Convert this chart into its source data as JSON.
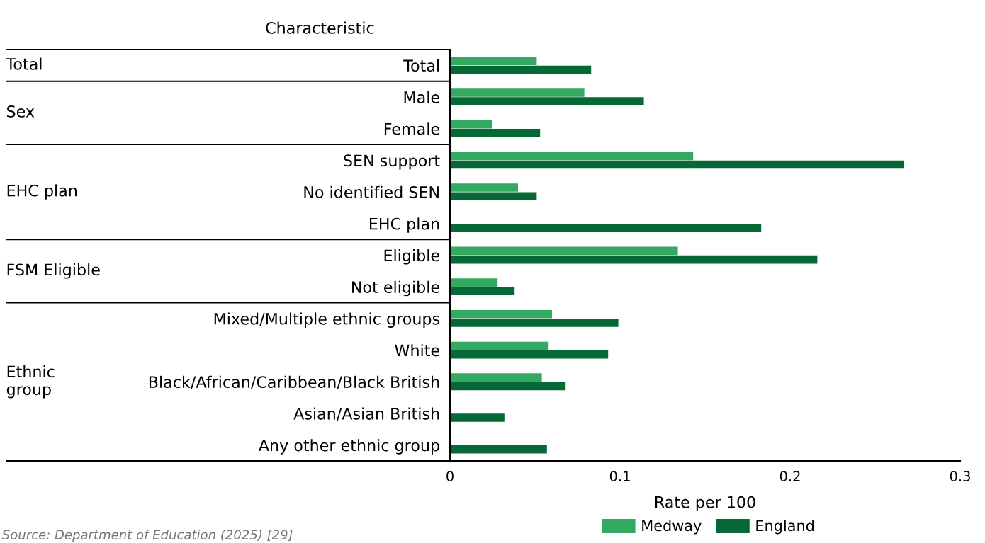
{
  "chart_data": {
    "type": "bar",
    "orientation": "horizontal",
    "ylabel": "Characteristic",
    "xlabel": "Rate per 100",
    "categories": [
      "Total",
      "Male",
      "Female",
      "SEN support",
      "No identified SEN",
      "EHC plan",
      "Eligible",
      "Not eligible",
      "Mixed/Multiple ethnic groups",
      "White",
      "Black/African/Caribbean/Black British",
      "Asian/Asian British",
      "Any other ethnic group"
    ],
    "series": [
      {
        "name": "Medway",
        "color": "#34a961",
        "values": [
          0.051,
          0.079,
          0.025,
          0.143,
          0.04,
          null,
          0.134,
          0.028,
          0.06,
          0.058,
          0.054,
          null,
          null
        ]
      },
      {
        "name": "England",
        "color": "#056835",
        "values": [
          0.083,
          0.114,
          0.053,
          0.267,
          0.051,
          0.183,
          0.216,
          0.038,
          0.099,
          0.093,
          0.068,
          0.032,
          0.057
        ]
      }
    ],
    "xlim": [
      0,
      0.3
    ],
    "xticks": [
      0,
      0.1,
      0.2,
      0.3
    ],
    "grid": false,
    "legend": "bottom",
    "annotations": [
      "Total",
      "Sex",
      "EHC plan",
      "FSM Eligible",
      "Ethnic group",
      "Source: Department of Education (2025) [29]"
    ]
  }
}
